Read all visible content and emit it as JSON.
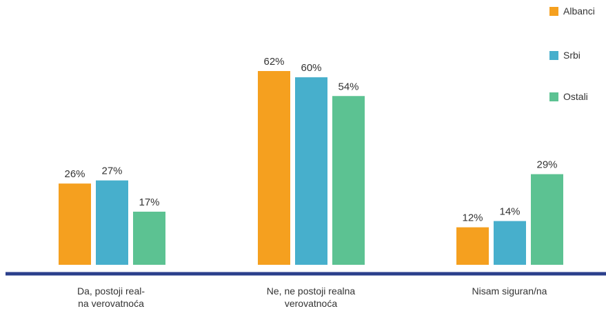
{
  "chart_data": {
    "type": "bar",
    "categories": [
      "Da, postoji real-\nna verovatnoća",
      "Ne, ne postoji realna\nverovatnoća",
      "Nisam siguran/na"
    ],
    "series": [
      {
        "name": "Albanci",
        "values": [
          26,
          62,
          12
        ],
        "labels": [
          "26%",
          "62%",
          "12%"
        ],
        "color": "#F5A01F"
      },
      {
        "name": "Srbi",
        "values": [
          27,
          60,
          14
        ],
        "labels": [
          "27%",
          "60%",
          "14%"
        ],
        "color": "#47AFCC"
      },
      {
        "name": "Ostali",
        "values": [
          17,
          54,
          29
        ],
        "labels": [
          "17%",
          "54%",
          "29%"
        ],
        "color": "#5CC292"
      }
    ],
    "ylim": [
      0,
      62
    ],
    "unit": "%",
    "grid": false,
    "legend_position": "top-right",
    "baseline_color": "#2B3F8C"
  }
}
